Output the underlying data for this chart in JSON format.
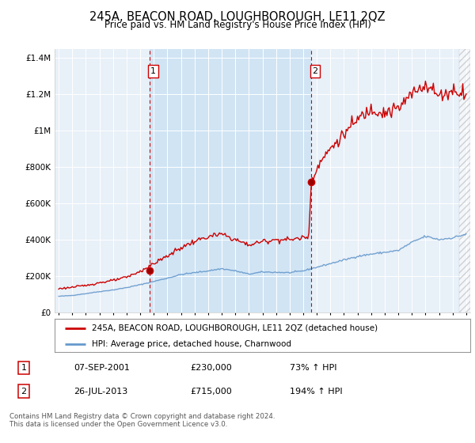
{
  "title": "245A, BEACON ROAD, LOUGHBOROUGH, LE11 2QZ",
  "subtitle": "Price paid vs. HM Land Registry's House Price Index (HPI)",
  "background_color": "#e8f0f8",
  "highlight_color": "#d0e4f4",
  "red_line_label": "245A, BEACON ROAD, LOUGHBOROUGH, LE11 2QZ (detached house)",
  "blue_line_label": "HPI: Average price, detached house, Charnwood",
  "annotation1_date": "07-SEP-2001",
  "annotation1_price": "£230,000",
  "annotation1_hpi": "73% ↑ HPI",
  "annotation2_date": "26-JUL-2013",
  "annotation2_price": "£715,000",
  "annotation2_hpi": "194% ↑ HPI",
  "footer": "Contains HM Land Registry data © Crown copyright and database right 2024.\nThis data is licensed under the Open Government Licence v3.0.",
  "sale1_x": 2001.67,
  "sale1_y": 230000,
  "sale2_x": 2013.58,
  "sale2_y": 715000,
  "ylim": [
    0,
    1450000
  ],
  "xlim_start": 1994.7,
  "xlim_end": 2025.3,
  "hatch_start": 2024.5,
  "red_color": "#cc0000",
  "blue_color": "#6699cc"
}
